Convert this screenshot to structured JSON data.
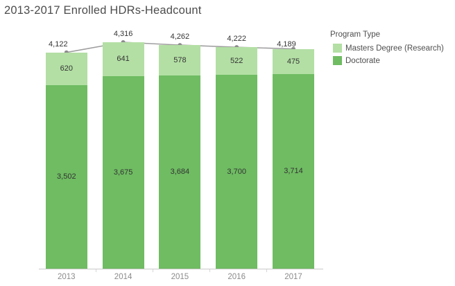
{
  "title": "2013-2017 Enrolled HDRs-Headcount",
  "legend": {
    "title": "Program Type",
    "items": [
      {
        "label": "Masters Degree (Research)",
        "color": "#b3dfa4"
      },
      {
        "label": "Doctorate",
        "color": "#6fbc62"
      }
    ]
  },
  "chart_data": {
    "type": "bar",
    "stacked": true,
    "title": "2013-2017 Enrolled HDRs-Headcount",
    "categories": [
      "2013",
      "2014",
      "2015",
      "2016",
      "2017"
    ],
    "series": [
      {
        "name": "Doctorate",
        "color": "#6fbc62",
        "values": [
          3502,
          3675,
          3684,
          3700,
          3714
        ]
      },
      {
        "name": "Masters Degree (Research)",
        "color": "#b3dfa4",
        "values": [
          620,
          641,
          578,
          522,
          475
        ]
      }
    ],
    "totals": [
      4122,
      4316,
      4262,
      4222,
      4189
    ],
    "total_line": {
      "color": "#9e9e9e",
      "marker_color": "#8b8b8b"
    },
    "xlabel": "",
    "ylabel": "",
    "ylim": [
      0,
      4316
    ],
    "grid": false,
    "legend_position": "right",
    "colors": {
      "axis_line": "#c9c9c9",
      "value_label": "#333333",
      "year_label": "#8b8b8b",
      "title": "#4c4c4c"
    }
  }
}
